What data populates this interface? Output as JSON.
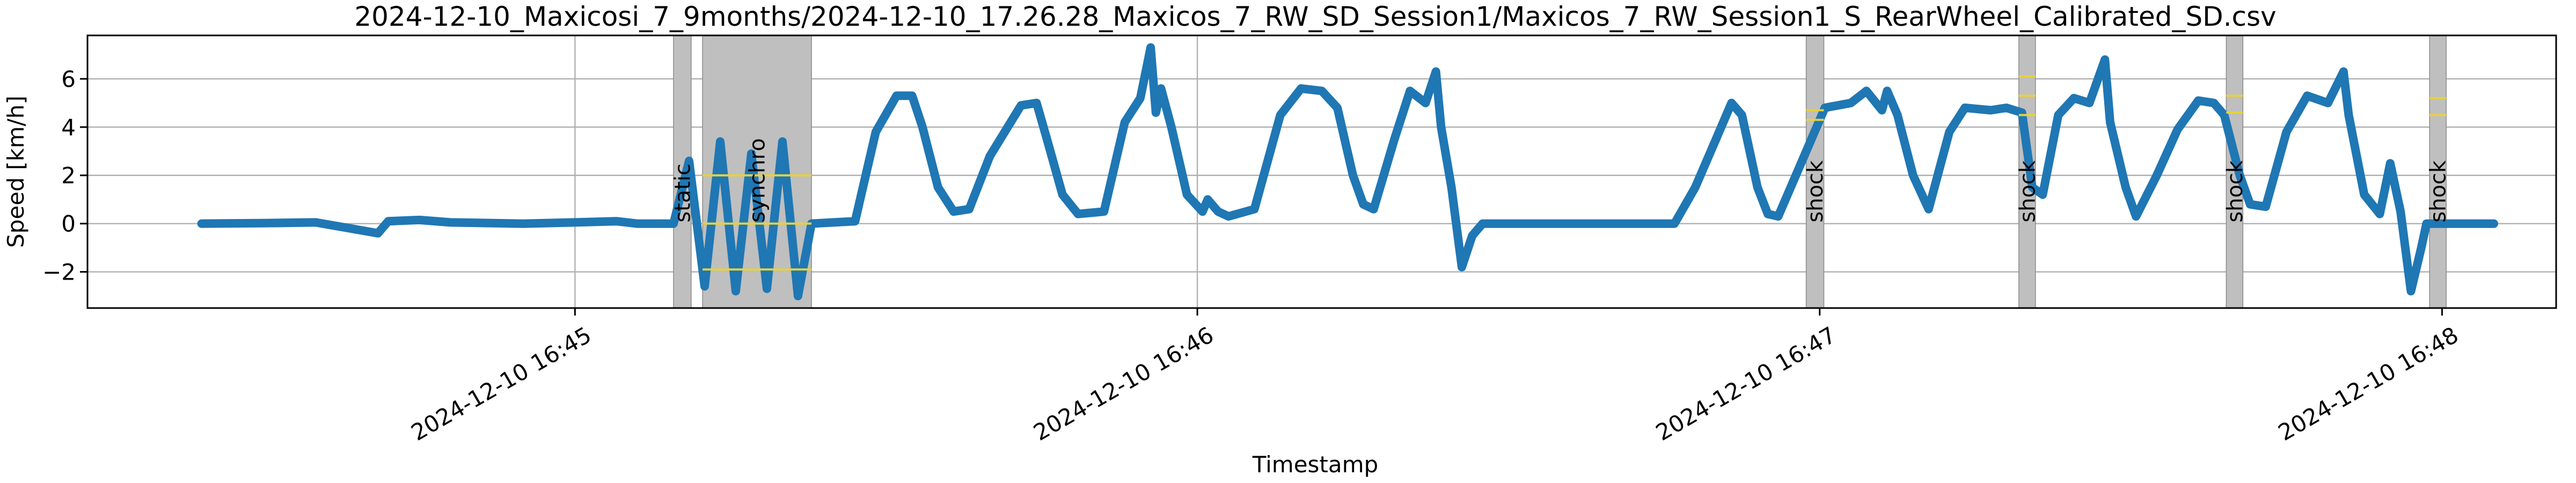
{
  "chart_data": {
    "type": "line",
    "title": "2024-12-10_Maxicosi_7_9months/2024-12-10_17.26.28_Maxicos_7_RW_SD_Session1/Maxicos_7_RW_Session1_S_RearWheel_Calibrated_SD.csv",
    "xlabel": "Timestamp",
    "ylabel": "Speed [km/h]",
    "x_unit": "seconds after 2024-12-10 16:44:00",
    "xlim": [
      13.0,
      251.0
    ],
    "ylim": [
      -3.5,
      7.8
    ],
    "grid": true,
    "x_ticks": [
      {
        "value": 60,
        "label": "2024-12-10 16:45"
      },
      {
        "value": 120,
        "label": "2024-12-10 16:46"
      },
      {
        "value": 180,
        "label": "2024-12-10 16:47"
      },
      {
        "value": 240,
        "label": "2024-12-10 16:48"
      }
    ],
    "y_ticks": [
      {
        "value": -2,
        "label": "−2"
      },
      {
        "value": 0,
        "label": "0"
      },
      {
        "value": 2,
        "label": "2"
      },
      {
        "value": 4,
        "label": "4"
      },
      {
        "value": 6,
        "label": "6"
      }
    ],
    "series_color": "#1f77b4",
    "series": [
      {
        "name": "",
        "points": [
          [
            24,
            0.0
          ],
          [
            30,
            0.02
          ],
          [
            35,
            0.05
          ],
          [
            41,
            -0.4
          ],
          [
            42,
            0.1
          ],
          [
            45,
            0.15
          ],
          [
            48,
            0.05
          ],
          [
            55,
            0.0
          ],
          [
            60,
            0.05
          ],
          [
            64,
            0.1
          ],
          [
            66,
            0.0
          ],
          [
            69.5,
            0.0
          ],
          [
            71,
            2.6
          ],
          [
            72.5,
            -2.6
          ],
          [
            74,
            3.4
          ],
          [
            75.5,
            -2.8
          ],
          [
            77,
            2.9
          ],
          [
            78.5,
            -2.7
          ],
          [
            80,
            3.4
          ],
          [
            81.5,
            -3.0
          ],
          [
            82.8,
            0.0
          ],
          [
            87,
            0.1
          ],
          [
            89,
            3.8
          ],
          [
            91,
            5.3
          ],
          [
            92.5,
            5.3
          ],
          [
            93.5,
            4.0
          ],
          [
            95,
            1.5
          ],
          [
            96.5,
            0.5
          ],
          [
            98,
            0.6
          ],
          [
            100,
            2.8
          ],
          [
            103,
            4.9
          ],
          [
            104.5,
            5.0
          ],
          [
            105.5,
            3.5
          ],
          [
            107,
            1.2
          ],
          [
            108.5,
            0.4
          ],
          [
            111,
            0.5
          ],
          [
            113,
            4.2
          ],
          [
            114.5,
            5.2
          ],
          [
            115.5,
            7.3
          ],
          [
            116,
            4.6
          ],
          [
            116.5,
            5.6
          ],
          [
            117.5,
            4.0
          ],
          [
            119,
            1.2
          ],
          [
            120.5,
            0.5
          ],
          [
            121,
            1.0
          ],
          [
            122,
            0.5
          ],
          [
            123,
            0.3
          ],
          [
            125.5,
            0.6
          ],
          [
            128,
            4.5
          ],
          [
            130,
            5.6
          ],
          [
            132,
            5.5
          ],
          [
            133.5,
            4.8
          ],
          [
            135,
            2.0
          ],
          [
            136,
            0.8
          ],
          [
            137,
            0.6
          ],
          [
            139,
            3.5
          ],
          [
            140.5,
            5.5
          ],
          [
            142,
            5.0
          ],
          [
            143,
            6.3
          ],
          [
            143.5,
            4.0
          ],
          [
            144.5,
            1.5
          ],
          [
            145.5,
            -1.8
          ],
          [
            146.5,
            -0.5
          ],
          [
            147.5,
            0.0
          ],
          [
            155,
            0.0
          ],
          [
            165,
            0.0
          ],
          [
            166,
            0.0
          ],
          [
            168,
            1.5
          ],
          [
            170,
            3.5
          ],
          [
            171.5,
            5.0
          ],
          [
            172.5,
            4.5
          ],
          [
            174,
            1.5
          ],
          [
            175,
            0.4
          ],
          [
            176,
            0.3
          ],
          [
            178,
            2.3
          ],
          [
            180.5,
            4.8
          ],
          [
            183,
            5.0
          ],
          [
            184.5,
            5.5
          ],
          [
            186,
            4.7
          ],
          [
            186.5,
            5.5
          ],
          [
            187.5,
            4.5
          ],
          [
            189,
            2.0
          ],
          [
            190.5,
            0.6
          ],
          [
            192.5,
            3.8
          ],
          [
            194,
            4.8
          ],
          [
            196.5,
            4.7
          ],
          [
            198,
            4.8
          ],
          [
            199.5,
            4.6
          ],
          [
            200.5,
            1.5
          ],
          [
            201.5,
            1.2
          ],
          [
            203,
            4.5
          ],
          [
            204.5,
            5.2
          ],
          [
            206,
            5.0
          ],
          [
            207.5,
            6.8
          ],
          [
            208,
            4.2
          ],
          [
            209.5,
            1.5
          ],
          [
            210.5,
            0.3
          ],
          [
            212.5,
            2.0
          ],
          [
            214.5,
            3.9
          ],
          [
            216.5,
            5.1
          ],
          [
            218,
            5.0
          ],
          [
            219,
            4.5
          ],
          [
            220.5,
            2.0
          ],
          [
            221.5,
            0.8
          ],
          [
            223,
            0.7
          ],
          [
            225,
            3.8
          ],
          [
            227,
            5.3
          ],
          [
            229,
            5.0
          ],
          [
            230.5,
            6.3
          ],
          [
            231,
            4.5
          ],
          [
            232.5,
            1.2
          ],
          [
            234,
            0.4
          ],
          [
            235,
            2.5
          ],
          [
            236,
            0.5
          ],
          [
            237,
            -2.8
          ],
          [
            238,
            -1.0
          ],
          [
            238.5,
            0.0
          ],
          [
            245,
            0.0
          ]
        ]
      }
    ],
    "shaded_regions": [
      {
        "label": "static",
        "x_start": 69.5,
        "x_end": 71.2,
        "y_lines": []
      },
      {
        "label": "synchro",
        "x_start": 72.3,
        "x_end": 82.8,
        "y_lines": [
          -1.9,
          0.0,
          2.0
        ]
      },
      {
        "label": "shock",
        "x_start": 178.7,
        "x_end": 180.4,
        "y_lines": [
          4.3,
          4.7
        ]
      },
      {
        "label": "shock",
        "x_start": 199.2,
        "x_end": 200.8,
        "y_lines": [
          4.5,
          5.3,
          6.1
        ]
      },
      {
        "label": "shock",
        "x_start": 219.2,
        "x_end": 220.8,
        "y_lines": [
          4.6,
          5.3
        ]
      },
      {
        "label": "shock",
        "x_start": 238.8,
        "x_end": 240.4,
        "y_lines": [
          4.5,
          5.2
        ]
      }
    ],
    "region_color": "#bfbfbf",
    "region_line_color": "#e6d23a"
  }
}
